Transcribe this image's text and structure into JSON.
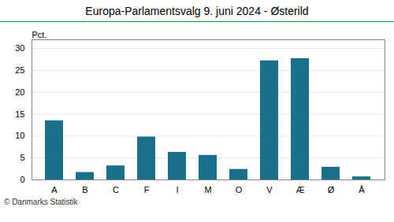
{
  "chart_data": {
    "type": "bar",
    "title": "Europa-Parlamentsvalg 9. juni 2024 - Østerild",
    "ylabel": "Pct.",
    "caption": "© Danmarks Statistik",
    "categories": [
      "A",
      "B",
      "C",
      "F",
      "I",
      "M",
      "O",
      "V",
      "Æ",
      "Ø",
      "Å"
    ],
    "values": [
      13.5,
      1.7,
      3.2,
      9.8,
      6.3,
      5.6,
      2.4,
      27.2,
      27.7,
      2.9,
      0.7
    ],
    "color": "#1a6f8a",
    "ylim": [
      0,
      32
    ],
    "yticks": [
      0,
      5,
      10,
      15,
      20,
      25,
      30
    ],
    "grid": true
  }
}
